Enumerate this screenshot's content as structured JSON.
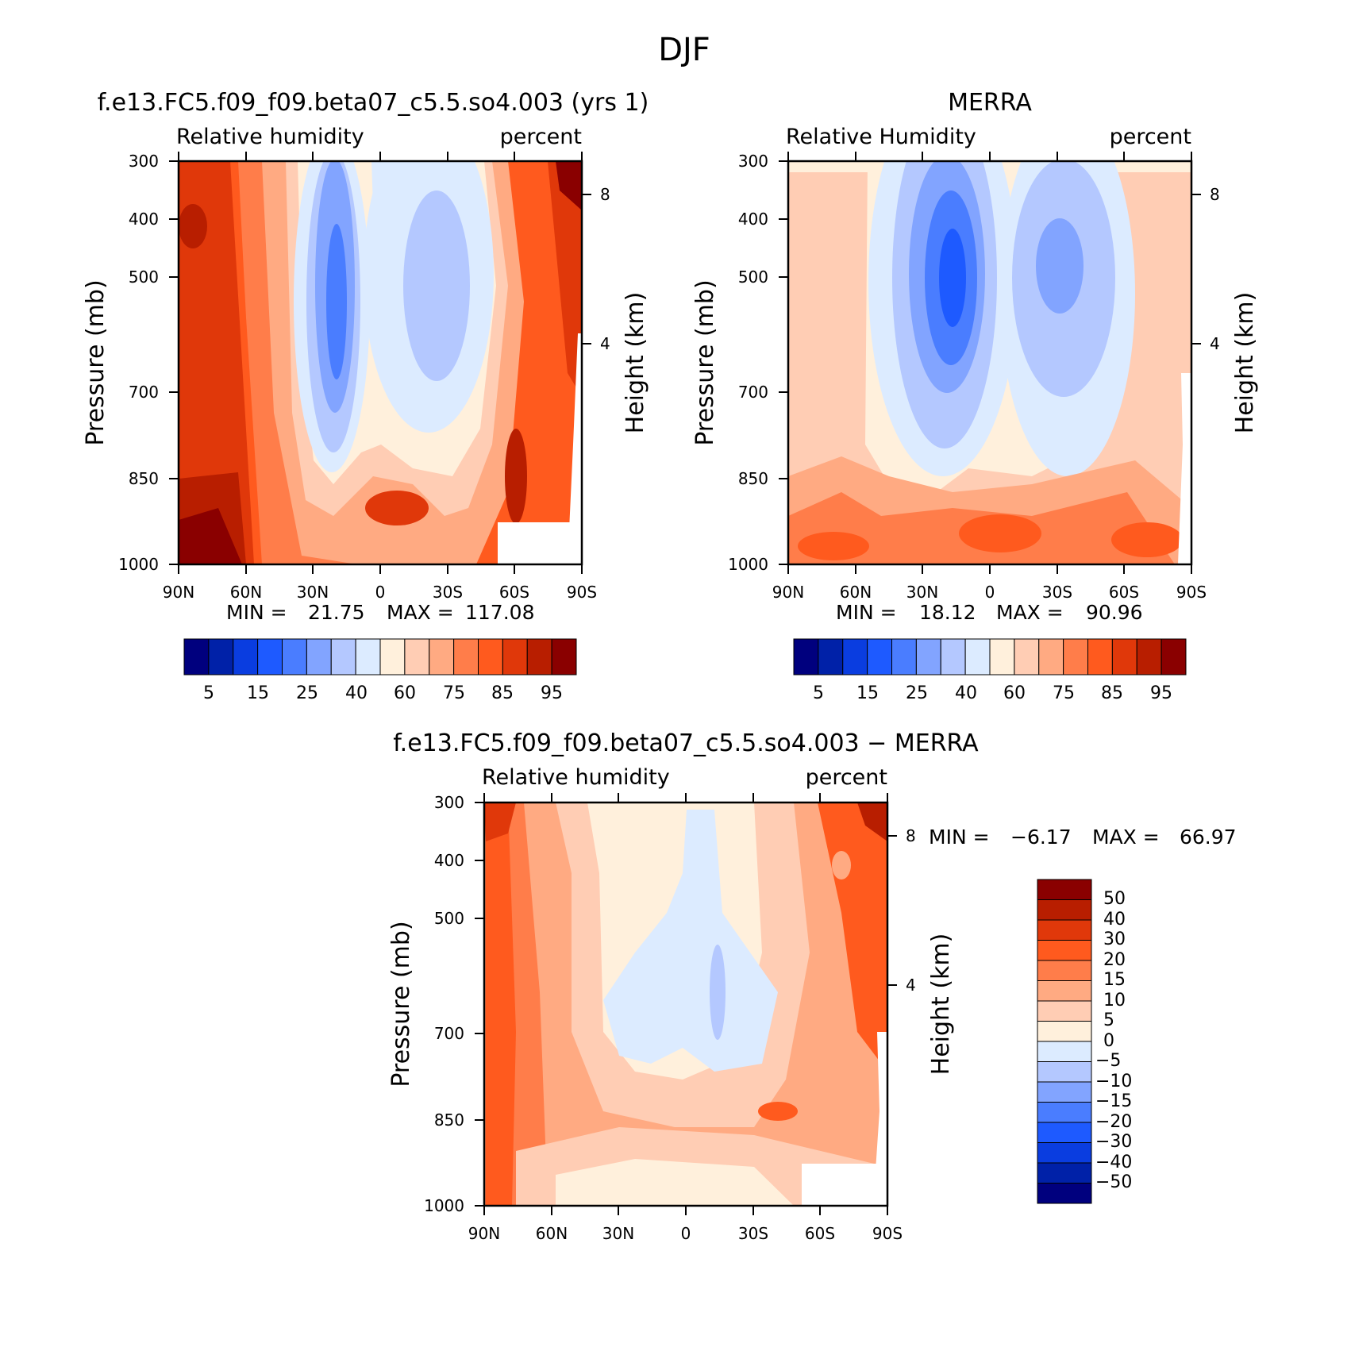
{
  "figure_title": "DJF",
  "chart_data": [
    {
      "type": "heatmap",
      "title": "f.e13.FC5.f09_f09.beta07_c5.5.so4.003 (yrs 1)",
      "variable": "Relative humidity",
      "units": "percent",
      "ylabel": "Pressure (mb)",
      "ylabel_right": "Height (km)",
      "x_ticks": [
        "90N",
        "60N",
        "30N",
        "0",
        "30S",
        "60S",
        "90S"
      ],
      "y_ticks": [
        "300",
        "400",
        "500",
        "700",
        "850",
        "1000"
      ],
      "y_ticks_right": [
        "8",
        "4"
      ],
      "min_label": "MIN =",
      "min": "21.75",
      "max_label": "MAX =",
      "max": "117.08",
      "colorbar_labels": [
        "5",
        "15",
        "25",
        "40",
        "60",
        "75",
        "85",
        "95"
      ]
    },
    {
      "type": "heatmap",
      "title": "MERRA",
      "variable": "Relative Humidity",
      "units": "percent",
      "ylabel": "Pressure (mb)",
      "ylabel_right": "Height (km)",
      "x_ticks": [
        "90N",
        "60N",
        "30N",
        "0",
        "30S",
        "60S",
        "90S"
      ],
      "y_ticks": [
        "300",
        "400",
        "500",
        "700",
        "850",
        "1000"
      ],
      "y_ticks_right": [
        "8",
        "4"
      ],
      "min_label": "MIN =",
      "min": "18.12",
      "max_label": "MAX =",
      "max": "90.96",
      "colorbar_labels": [
        "5",
        "15",
        "25",
        "40",
        "60",
        "75",
        "85",
        "95"
      ]
    },
    {
      "type": "heatmap",
      "title": "f.e13.FC5.f09_f09.beta07_c5.5.so4.003 − MERRA",
      "variable": "Relative humidity",
      "units": "percent",
      "ylabel": "Pressure (mb)",
      "ylabel_right": "Height (km)",
      "x_ticks": [
        "90N",
        "60N",
        "30N",
        "0",
        "30S",
        "60S",
        "90S"
      ],
      "y_ticks": [
        "300",
        "400",
        "500",
        "700",
        "850",
        "1000"
      ],
      "y_ticks_right": [
        "8",
        "4"
      ],
      "min_label": "MIN =",
      "min": "−6.17",
      "max_label": "MAX =",
      "max": "66.97",
      "colorbar_labels": [
        "50",
        "40",
        "30",
        "20",
        "15",
        "10",
        "5",
        "0",
        "−5",
        "−10",
        "−15",
        "−20",
        "−30",
        "−40",
        "−50"
      ]
    }
  ],
  "palette": [
    "#00007e",
    "#0021a8",
    "#0a3de0",
    "#1e5aff",
    "#4a7dff",
    "#82a4ff",
    "#b4c8ff",
    "#dcebff",
    "#fff0dc",
    "#ffcdb4",
    "#ffaa82",
    "#ff7d4a",
    "#ff5a1e",
    "#e0380a",
    "#b81e00",
    "#8a0000"
  ]
}
